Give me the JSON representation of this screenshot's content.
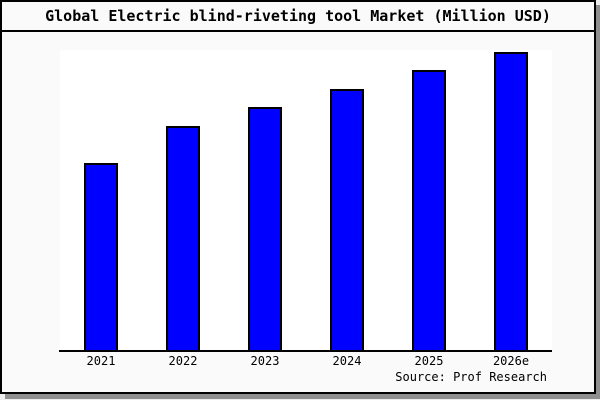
{
  "page": {
    "title": "Global Electric blind-riveting tool Market (Million USD)",
    "source_note": "Source: Prof Research"
  },
  "colors": {
    "bar_fill": "#0000ff",
    "bar_border": "#000000",
    "chart_background": "#fafafa",
    "plot_background": "#ffffff",
    "outer_border": "#000000",
    "shadow": "#8f8f8f"
  },
  "chart_data": {
    "type": "bar",
    "title": "Global Electric blind-riveting tool Market (Million USD)",
    "categories": [
      "2021",
      "2022",
      "2023",
      "2024",
      "2025",
      "2026e"
    ],
    "values": [
      62.7,
      75.0,
      81.3,
      87.3,
      93.7,
      99.7
    ],
    "units": "relative bar height, percent of plot height (no y-axis scale shown in image)",
    "xlabel": "",
    "ylabel": "",
    "ylim": [
      0,
      100
    ],
    "grid": false,
    "legend": false,
    "y_axis_visible": false,
    "bar_color": "#0000ff",
    "annotation": "Source: Prof Research"
  }
}
